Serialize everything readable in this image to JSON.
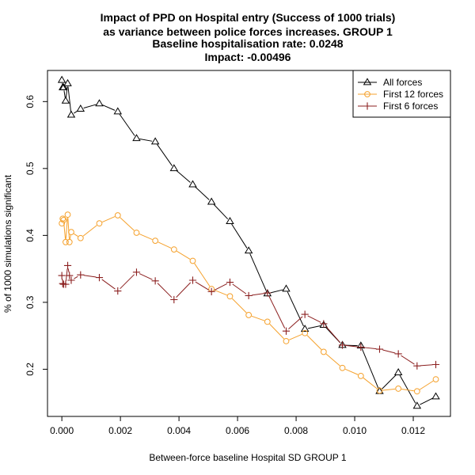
{
  "chart_data": {
    "type": "line",
    "title_lines": [
      "Impact of PPD on Hospital entry (Success of 1000 trials)",
      "as variance between police forces increases. GROUP 1"
    ],
    "baseline_text": "Baseline hospitalisation rate: 0.0248",
    "impact_text": "Impact: -0.00496",
    "xlabel": "Between-force baseline Hospital SD GROUP 1",
    "ylabel": "% of 1000 simulations significant",
    "xlim": [
      -0.00049,
      0.01327
    ],
    "ylim": [
      0.1295,
      0.6465
    ],
    "x_ticks": [
      0.0,
      0.002,
      0.004,
      0.006,
      0.008,
      0.01,
      0.012
    ],
    "x_tick_labels": [
      "0.000",
      "0.002",
      "0.004",
      "0.006",
      "0.008",
      "0.010",
      "0.012"
    ],
    "y_ticks": [
      0.2,
      0.3,
      0.4,
      0.5,
      0.6
    ],
    "y_tick_labels": [
      "0.2",
      "0.3",
      "0.4",
      "0.5",
      "0.6"
    ],
    "grid": false,
    "legend_position": "top-right",
    "series": [
      {
        "name": "All forces",
        "color": "#000000",
        "marker": "triangle",
        "x": [
          0.0,
          3e-05,
          6e-05,
          0.00013,
          0.0002,
          0.00032,
          0.00064,
          0.00128,
          0.00191,
          0.00255,
          0.00319,
          0.00383,
          0.00447,
          0.00511,
          0.00574,
          0.00638,
          0.00702,
          0.00766,
          0.0083,
          0.00894,
          0.00958,
          0.01021,
          0.01085,
          0.01149,
          0.01213,
          0.01277
        ],
        "y": [
          0.632,
          0.621,
          0.621,
          0.601,
          0.627,
          0.58,
          0.589,
          0.597,
          0.585,
          0.545,
          0.54,
          0.5,
          0.476,
          0.45,
          0.421,
          0.377,
          0.313,
          0.32,
          0.26,
          0.266,
          0.236,
          0.235,
          0.167,
          0.195,
          0.145,
          0.159
        ]
      },
      {
        "name": "First 12 forces",
        "color": "#f5a12c",
        "marker": "circle",
        "x": [
          0.0,
          3e-05,
          6e-05,
          0.00013,
          0.0002,
          0.00026,
          0.00032,
          0.00064,
          0.00128,
          0.00191,
          0.00255,
          0.00319,
          0.00383,
          0.00447,
          0.00511,
          0.00574,
          0.00638,
          0.00702,
          0.00766,
          0.0083,
          0.00894,
          0.00958,
          0.01021,
          0.01085,
          0.01149,
          0.01213,
          0.01277
        ],
        "y": [
          0.418,
          0.425,
          0.423,
          0.39,
          0.431,
          0.39,
          0.405,
          0.396,
          0.418,
          0.43,
          0.404,
          0.392,
          0.379,
          0.362,
          0.32,
          0.309,
          0.281,
          0.271,
          0.242,
          0.254,
          0.226,
          0.202,
          0.19,
          0.168,
          0.171,
          0.167,
          0.185
        ]
      },
      {
        "name": "First 6 forces",
        "color": "#8b1f1f",
        "marker": "plus",
        "x": [
          0.0,
          3e-05,
          6e-05,
          0.00013,
          0.0002,
          0.00026,
          0.00032,
          0.00064,
          0.00128,
          0.00191,
          0.00255,
          0.00319,
          0.00383,
          0.00447,
          0.00511,
          0.00574,
          0.00638,
          0.00702,
          0.00766,
          0.0083,
          0.00894,
          0.00958,
          0.01021,
          0.01085,
          0.01149,
          0.01213,
          0.01277
        ],
        "y": [
          0.34,
          0.328,
          0.327,
          0.327,
          0.355,
          0.34,
          0.333,
          0.341,
          0.337,
          0.317,
          0.345,
          0.332,
          0.304,
          0.333,
          0.316,
          0.33,
          0.31,
          0.314,
          0.257,
          0.282,
          0.268,
          0.236,
          0.233,
          0.23,
          0.223,
          0.205,
          0.207
        ]
      }
    ]
  },
  "colors": {
    "baseline_text": "#8b1f1f",
    "impact_text": "#1e6b1e",
    "axis": "#000000"
  }
}
